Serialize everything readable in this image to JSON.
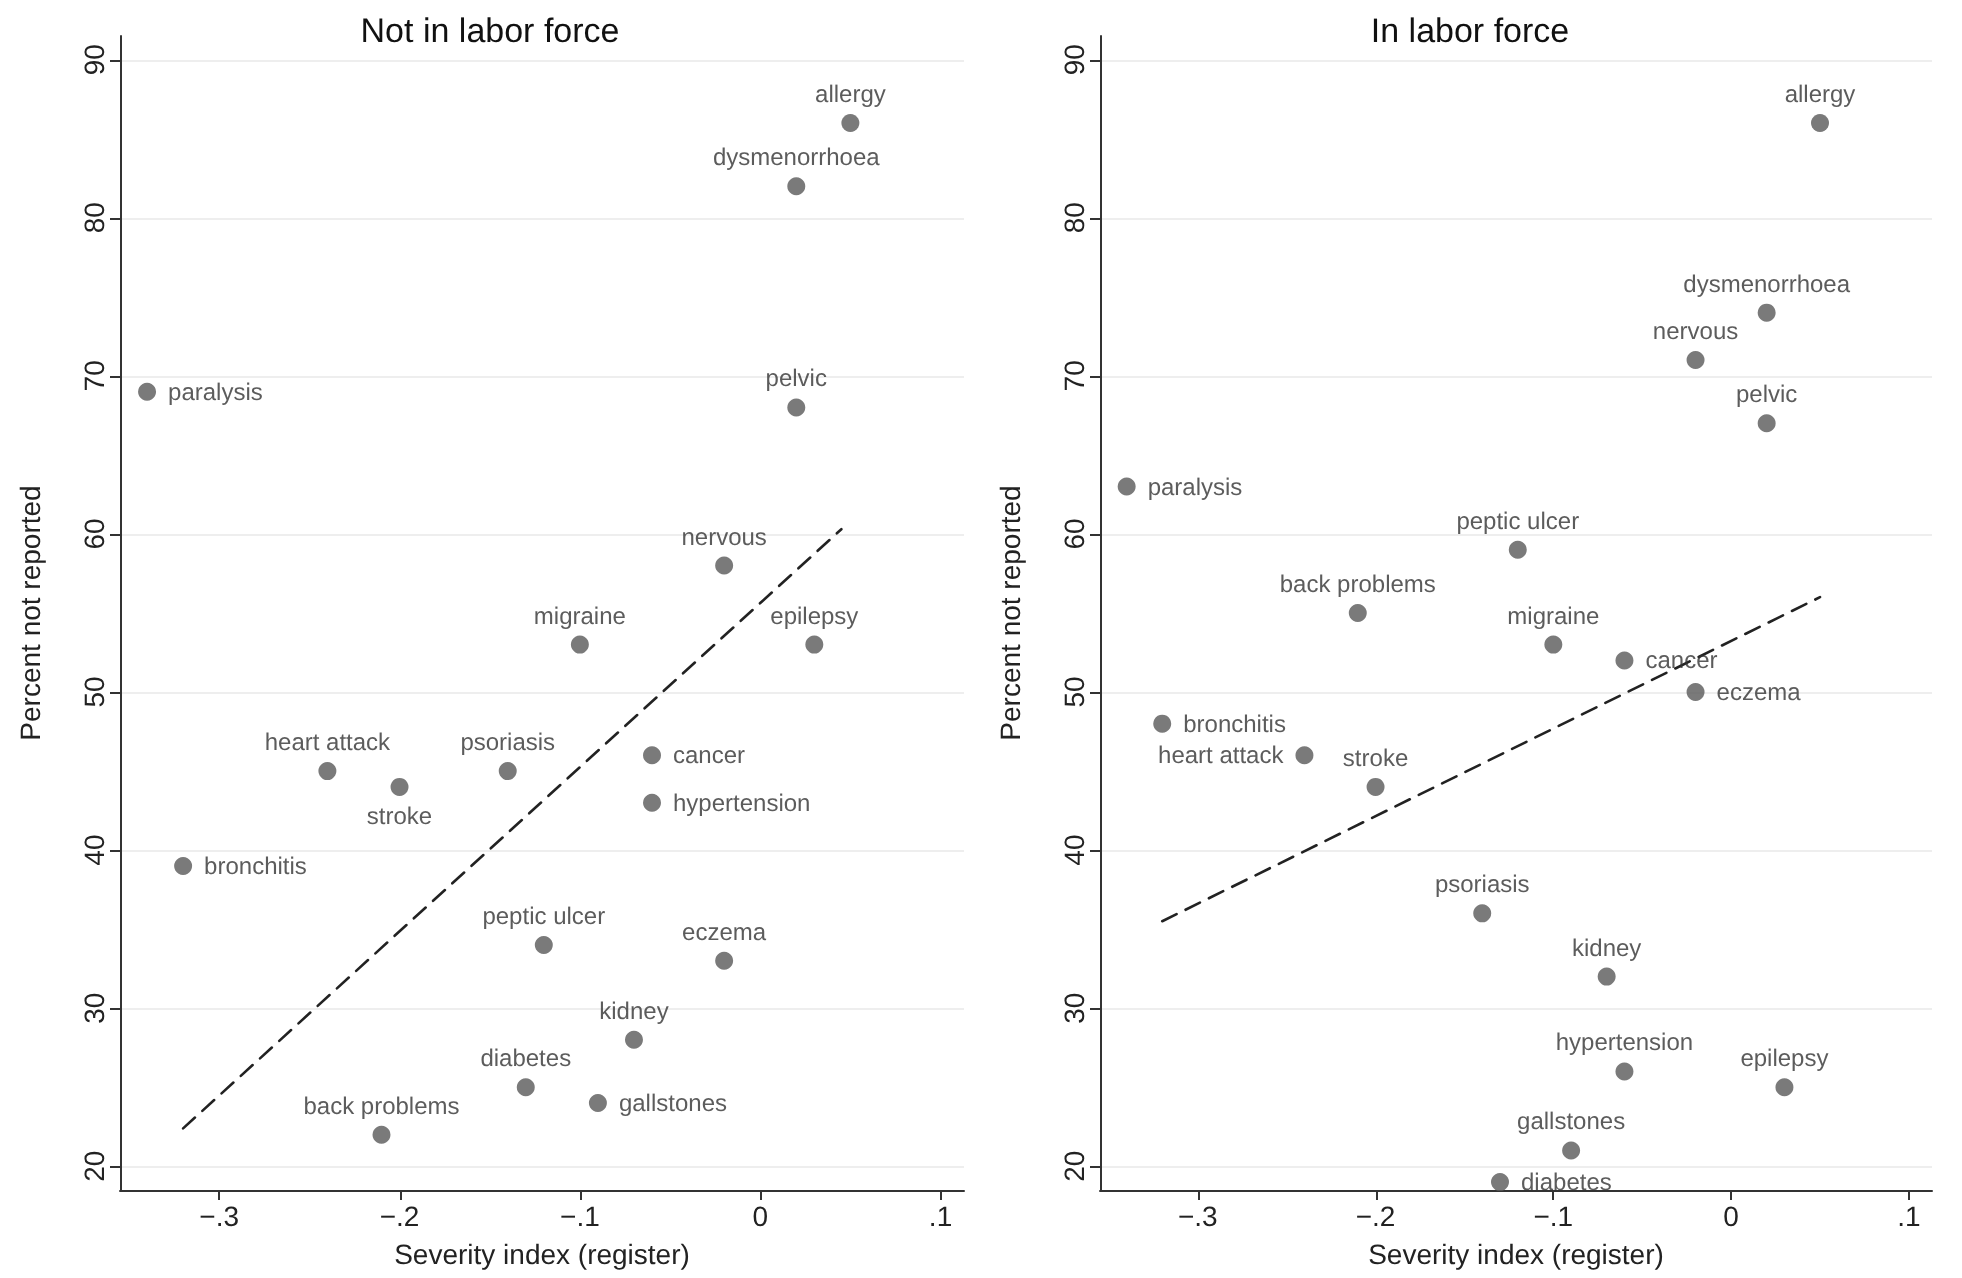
{
  "chart_data": [
    {
      "type": "scatter",
      "title": "Not in labor force",
      "xlabel": "Severity index (register)",
      "ylabel": "Percent not reported",
      "xlim": [
        -0.355,
        0.113
      ],
      "ylim": [
        18.5,
        91.5
      ],
      "xticks": [
        {
          "value": -0.3,
          "label": "−.3"
        },
        {
          "value": -0.2,
          "label": "−.2"
        },
        {
          "value": -0.1,
          "label": "−.1"
        },
        {
          "value": 0,
          "label": "0"
        },
        {
          "value": 0.1,
          "label": ".1"
        }
      ],
      "yticks": [
        20,
        30,
        40,
        50,
        60,
        70,
        80,
        90
      ],
      "grid": "y",
      "marker": "circle",
      "series": [
        {
          "name": "allergy",
          "color": "#595959",
          "x": [
            0.05
          ],
          "values": [
            86
          ]
        },
        {
          "name": "dysmenorrhoea",
          "color": "#595959",
          "x": [
            0.02
          ],
          "values": [
            82
          ]
        },
        {
          "name": "paralysis",
          "color": "#595959",
          "x": [
            -0.34
          ],
          "values": [
            69
          ]
        },
        {
          "name": "pelvic",
          "color": "#595959",
          "x": [
            0.02
          ],
          "values": [
            68
          ]
        },
        {
          "name": "nervous",
          "color": "#595959",
          "x": [
            -0.02
          ],
          "values": [
            58
          ]
        },
        {
          "name": "migraine",
          "color": "#595959",
          "x": [
            -0.1
          ],
          "values": [
            53
          ]
        },
        {
          "name": "epilepsy",
          "color": "#595959",
          "x": [
            0.03
          ],
          "values": [
            53
          ]
        },
        {
          "name": "heart attack",
          "color": "#595959",
          "x": [
            -0.24
          ],
          "values": [
            45
          ]
        },
        {
          "name": "stroke",
          "color": "#595959",
          "x": [
            -0.2
          ],
          "values": [
            44
          ]
        },
        {
          "name": "psoriasis",
          "color": "#595959",
          "x": [
            -0.14
          ],
          "values": [
            45
          ]
        },
        {
          "name": "cancer",
          "color": "#595959",
          "x": [
            -0.06
          ],
          "values": [
            46
          ]
        },
        {
          "name": "hypertension",
          "color": "#595959",
          "x": [
            -0.06
          ],
          "values": [
            43
          ]
        },
        {
          "name": "bronchitis",
          "color": "#595959",
          "x": [
            -0.32
          ],
          "values": [
            39
          ]
        },
        {
          "name": "peptic ulcer",
          "color": "#595959",
          "x": [
            -0.12
          ],
          "values": [
            34
          ]
        },
        {
          "name": "eczema",
          "color": "#595959",
          "x": [
            -0.02
          ],
          "values": [
            33
          ]
        },
        {
          "name": "kidney",
          "color": "#595959",
          "x": [
            -0.07
          ],
          "values": [
            28
          ]
        },
        {
          "name": "diabetes",
          "color": "#595959",
          "x": [
            -0.13
          ],
          "values": [
            25
          ]
        },
        {
          "name": "gallstones",
          "color": "#595959",
          "x": [
            -0.09
          ],
          "values": [
            24
          ]
        },
        {
          "name": "back problems",
          "color": "#595959",
          "x": [
            -0.21
          ],
          "values": [
            22
          ]
        },
        {
          "type": "line",
          "color": "#222222",
          "line_style": "dashed",
          "marker": "none",
          "x": [
            -0.32,
            0.045
          ],
          "values": [
            22.4,
            60.3
          ]
        }
      ]
    },
    {
      "type": "scatter",
      "title": "In labor force",
      "xlabel": "Severity index (register)",
      "ylabel": "Percent not reported",
      "xlim": [
        -0.355,
        0.113
      ],
      "ylim": [
        18.5,
        91.5
      ],
      "xticks": [
        {
          "value": -0.3,
          "label": "−.3"
        },
        {
          "value": -0.2,
          "label": "−.2"
        },
        {
          "value": -0.1,
          "label": "−.1"
        },
        {
          "value": 0,
          "label": "0"
        },
        {
          "value": 0.1,
          "label": ".1"
        }
      ],
      "yticks": [
        20,
        30,
        40,
        50,
        60,
        70,
        80,
        90
      ],
      "grid": "y",
      "marker": "circle",
      "series": [
        {
          "name": "allergy",
          "color": "#595959",
          "x": [
            0.05
          ],
          "values": [
            86
          ]
        },
        {
          "name": "dysmenorrhoea",
          "color": "#595959",
          "x": [
            0.02
          ],
          "values": [
            74
          ]
        },
        {
          "name": "nervous",
          "color": "#595959",
          "x": [
            -0.02
          ],
          "values": [
            71
          ]
        },
        {
          "name": "pelvic",
          "color": "#595959",
          "x": [
            0.02
          ],
          "values": [
            67
          ]
        },
        {
          "name": "paralysis",
          "color": "#595959",
          "x": [
            -0.34
          ],
          "values": [
            63
          ]
        },
        {
          "name": "peptic ulcer",
          "color": "#595959",
          "x": [
            -0.12
          ],
          "values": [
            59
          ]
        },
        {
          "name": "back problems",
          "color": "#595959",
          "x": [
            -0.21
          ],
          "values": [
            55
          ]
        },
        {
          "name": "migraine",
          "color": "#595959",
          "x": [
            -0.1
          ],
          "values": [
            53
          ]
        },
        {
          "name": "cancer",
          "color": "#595959",
          "x": [
            -0.06
          ],
          "values": [
            52
          ]
        },
        {
          "name": "eczema",
          "color": "#595959",
          "x": [
            -0.02
          ],
          "values": [
            50
          ]
        },
        {
          "name": "bronchitis",
          "color": "#595959",
          "x": [
            -0.32
          ],
          "values": [
            48
          ]
        },
        {
          "name": "heart attack",
          "color": "#595959",
          "x": [
            -0.24
          ],
          "values": [
            46
          ]
        },
        {
          "name": "stroke",
          "color": "#595959",
          "x": [
            -0.2
          ],
          "values": [
            44
          ]
        },
        {
          "name": "psoriasis",
          "color": "#595959",
          "x": [
            -0.14
          ],
          "values": [
            36
          ]
        },
        {
          "name": "kidney",
          "color": "#595959",
          "x": [
            -0.07
          ],
          "values": [
            32
          ]
        },
        {
          "name": "hypertension",
          "color": "#595959",
          "x": [
            -0.06
          ],
          "values": [
            26
          ]
        },
        {
          "name": "epilepsy",
          "color": "#595959",
          "x": [
            0.03
          ],
          "values": [
            25
          ]
        },
        {
          "name": "gallstones",
          "color": "#595959",
          "x": [
            -0.09
          ],
          "values": [
            21
          ]
        },
        {
          "name": "diabetes",
          "color": "#595959",
          "x": [
            -0.13
          ],
          "values": [
            19
          ]
        },
        {
          "type": "line",
          "color": "#222222",
          "line_style": "dashed",
          "marker": "none",
          "x": [
            -0.32,
            0.05
          ],
          "values": [
            35.5,
            56
          ]
        }
      ]
    }
  ]
}
